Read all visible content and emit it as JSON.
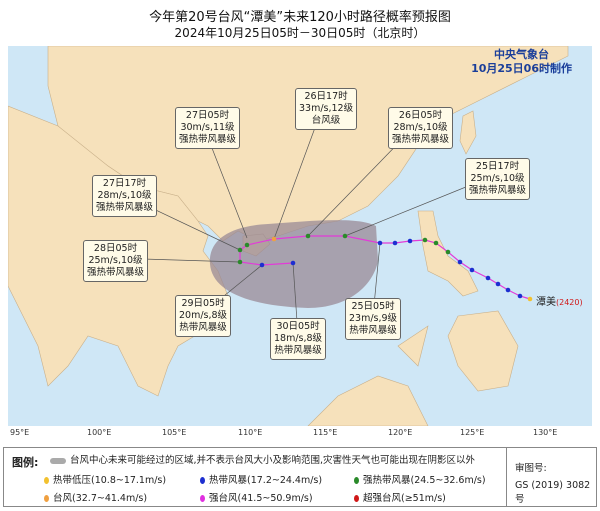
{
  "title": "今年第20号台风“潭美”未来120小时路径概率预报图",
  "subtitle": "2024年10月25日05时－30日05时（北京时）",
  "agency": {
    "name": "中央气象台",
    "issued": "10月25日06时制作"
  },
  "typhoon_label": "潭美",
  "typhoon_id": "(2420)",
  "forecast_labels": [
    {
      "time": "27日05时",
      "wind": "30m/s,11级",
      "grade": "强热带风暴级"
    },
    {
      "time": "26日17时",
      "wind": "33m/s,12级",
      "grade": "台风级"
    },
    {
      "time": "26日05时",
      "wind": "28m/s,10级",
      "grade": "强热带风暴级"
    },
    {
      "time": "25日17时",
      "wind": "25m/s,10级",
      "grade": "强热带风暴级"
    },
    {
      "time": "27日17时",
      "wind": "28m/s,10级",
      "grade": "强热带风暴级"
    },
    {
      "time": "28日05时",
      "wind": "25m/s,10级",
      "grade": "强热带风暴级"
    },
    {
      "time": "29日05时",
      "wind": "20m/s,8级",
      "grade": "热带风暴级"
    },
    {
      "time": "30日05时",
      "wind": "18m/s,8级",
      "grade": "热带风暴级"
    },
    {
      "time": "25日05时",
      "wind": "23m/s,9级",
      "grade": "热带风暴级"
    }
  ],
  "longitudes": [
    "95°E",
    "100°E",
    "105°E",
    "110°E",
    "115°E",
    "120°E",
    "125°E",
    "130°E"
  ],
  "legend": {
    "title": "图例:",
    "cone_note": "台风中心未来可能经过的区域,并不表示台风大小及影响范围,灾害性天气也可能出现在阴影区以外",
    "items": [
      {
        "label": "热带低压(10.8~17.1m/s)",
        "color": "#f2c12e"
      },
      {
        "label": "热带风暴(17.2~24.4m/s)",
        "color": "#1d2fd0"
      },
      {
        "label": "强热带风暴(24.5~32.6m/s)",
        "color": "#2a8a2a"
      },
      {
        "label": "台风(32.7~41.4m/s)",
        "color": "#f0a040"
      },
      {
        "label": "强台风(41.5~50.9m/s)",
        "color": "#e030e0"
      },
      {
        "label": "超强台风(≥51m/s)",
        "color": "#d01818"
      }
    ],
    "approval_label": "审图号:",
    "approval_no": "GS (2019) 3082号"
  },
  "colors": {
    "land": "#f6e1bb",
    "sea": "#cfe7f6",
    "cone": "#9a8a96",
    "track_past": "#e23bd8",
    "track_forecast": "#e23bd8"
  }
}
